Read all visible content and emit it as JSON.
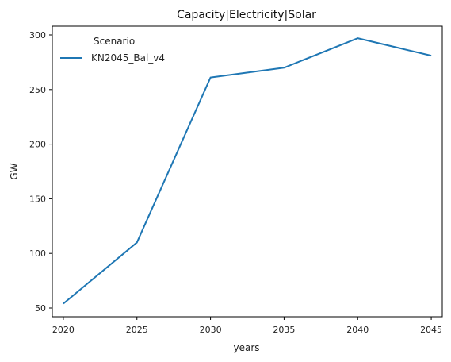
{
  "chart_data": {
    "type": "line",
    "title": "Capacity|Electricity|Solar",
    "xlabel": "years",
    "ylabel": "GW",
    "x": [
      2020,
      2025,
      2030,
      2035,
      2040,
      2045
    ],
    "xticks": [
      "2020",
      "2025",
      "2030",
      "2035",
      "2040",
      "2045"
    ],
    "yticks": [
      "50",
      "100",
      "150",
      "200",
      "250",
      "300"
    ],
    "xlim": [
      2019.25,
      2045.75
    ],
    "ylim": [
      42,
      308
    ],
    "grid": false,
    "legend": {
      "title": "Scenario",
      "placement": "top-left"
    },
    "series": [
      {
        "name": "KN2045_Bal_v4",
        "color": "#1f77b4",
        "values": [
          54,
          110,
          261,
          270,
          297,
          281
        ]
      }
    ]
  }
}
